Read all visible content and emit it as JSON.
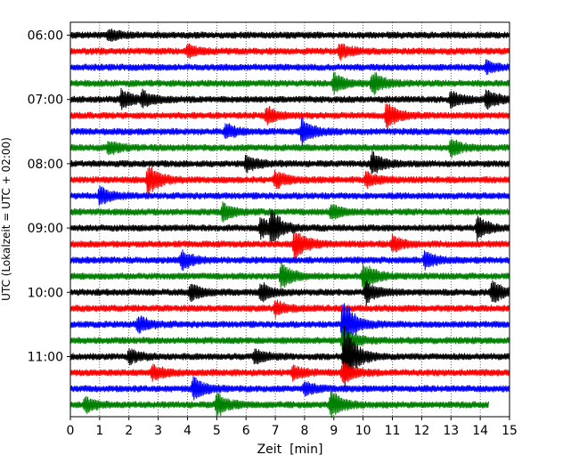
{
  "chart_data": {
    "type": "line",
    "title": "",
    "xlabel": "Zeit  [min]",
    "ylabel": "UTC (Lokalzeit = UTC + 02:00)",
    "xlim": [
      0,
      15
    ],
    "x_ticks": [
      "0",
      "1",
      "2",
      "3",
      "4",
      "5",
      "6",
      "7",
      "8",
      "9",
      "10",
      "11",
      "12",
      "13",
      "14",
      "15"
    ],
    "y_tick_labels": [
      "06:00",
      "07:00",
      "08:00",
      "09:00",
      "10:00",
      "11:00"
    ],
    "grid": "vertical dotted at each minute",
    "trace_colors": [
      "#000000",
      "#ff0000",
      "#0000ff",
      "#008000"
    ],
    "rows": [
      {
        "start": "06:00",
        "color": "#000000",
        "end_min": 15
      },
      {
        "start": "06:15",
        "color": "#ff0000",
        "end_min": 15
      },
      {
        "start": "06:30",
        "color": "#0000ff",
        "end_min": 15
      },
      {
        "start": "06:45",
        "color": "#008000",
        "end_min": 15
      },
      {
        "start": "07:00",
        "color": "#000000",
        "end_min": 15
      },
      {
        "start": "07:15",
        "color": "#ff0000",
        "end_min": 15
      },
      {
        "start": "07:30",
        "color": "#0000ff",
        "end_min": 15
      },
      {
        "start": "07:45",
        "color": "#008000",
        "end_min": 15
      },
      {
        "start": "08:00",
        "color": "#000000",
        "end_min": 15
      },
      {
        "start": "08:15",
        "color": "#ff0000",
        "end_min": 15
      },
      {
        "start": "08:30",
        "color": "#0000ff",
        "end_min": 15
      },
      {
        "start": "08:45",
        "color": "#008000",
        "end_min": 15
      },
      {
        "start": "09:00",
        "color": "#000000",
        "end_min": 15
      },
      {
        "start": "09:15",
        "color": "#ff0000",
        "end_min": 15
      },
      {
        "start": "09:30",
        "color": "#0000ff",
        "end_min": 15
      },
      {
        "start": "09:45",
        "color": "#008000",
        "end_min": 15
      },
      {
        "start": "10:00",
        "color": "#000000",
        "end_min": 15
      },
      {
        "start": "10:15",
        "color": "#ff0000",
        "end_min": 15
      },
      {
        "start": "10:30",
        "color": "#0000ff",
        "end_min": 15
      },
      {
        "start": "10:45",
        "color": "#008000",
        "end_min": 15
      },
      {
        "start": "11:00",
        "color": "#000000",
        "end_min": 15
      },
      {
        "start": "11:15",
        "color": "#ff0000",
        "end_min": 15
      },
      {
        "start": "11:30",
        "color": "#0000ff",
        "end_min": 15
      },
      {
        "start": "11:45",
        "color": "#008000",
        "end_min": 14.3
      }
    ],
    "events": [
      {
        "row": 0,
        "min": 1.3,
        "amp": 0.4
      },
      {
        "row": 1,
        "min": 9.2,
        "amp": 0.5
      },
      {
        "row": 1,
        "min": 4.0,
        "amp": 0.4
      },
      {
        "row": 2,
        "min": 14.2,
        "amp": 0.4
      },
      {
        "row": 3,
        "min": 9.0,
        "amp": 0.7
      },
      {
        "row": 3,
        "min": 10.3,
        "amp": 0.8
      },
      {
        "row": 4,
        "min": 1.75,
        "amp": 0.7
      },
      {
        "row": 4,
        "min": 2.45,
        "amp": 0.5
      },
      {
        "row": 4,
        "min": 13.0,
        "amp": 0.6
      },
      {
        "row": 4,
        "min": 14.2,
        "amp": 0.7
      },
      {
        "row": 5,
        "min": 6.7,
        "amp": 0.6
      },
      {
        "row": 5,
        "min": 10.8,
        "amp": 1.0
      },
      {
        "row": 6,
        "min": 7.9,
        "amp": 0.9
      },
      {
        "row": 6,
        "min": 5.3,
        "amp": 0.5
      },
      {
        "row": 7,
        "min": 13.0,
        "amp": 0.6
      },
      {
        "row": 7,
        "min": 1.3,
        "amp": 0.5
      },
      {
        "row": 8,
        "min": 6.0,
        "amp": 0.6
      },
      {
        "row": 8,
        "min": 10.3,
        "amp": 0.8
      },
      {
        "row": 9,
        "min": 2.65,
        "amp": 1.1
      },
      {
        "row": 9,
        "min": 7.0,
        "amp": 0.6
      },
      {
        "row": 9,
        "min": 10.1,
        "amp": 0.5
      },
      {
        "row": 10,
        "min": 1.0,
        "amp": 0.6
      },
      {
        "row": 11,
        "min": 5.2,
        "amp": 0.6
      },
      {
        "row": 11,
        "min": 8.9,
        "amp": 0.5
      },
      {
        "row": 12,
        "min": 6.5,
        "amp": 0.7
      },
      {
        "row": 12,
        "min": 6.85,
        "amp": 1.1
      },
      {
        "row": 12,
        "min": 13.9,
        "amp": 0.8
      },
      {
        "row": 13,
        "min": 7.65,
        "amp": 1.1
      },
      {
        "row": 13,
        "min": 11.0,
        "amp": 0.5
      },
      {
        "row": 14,
        "min": 3.8,
        "amp": 0.7
      },
      {
        "row": 14,
        "min": 12.1,
        "amp": 0.6
      },
      {
        "row": 15,
        "min": 7.2,
        "amp": 0.9
      },
      {
        "row": 15,
        "min": 10.0,
        "amp": 1.0
      },
      {
        "row": 16,
        "min": 4.1,
        "amp": 0.6
      },
      {
        "row": 16,
        "min": 6.5,
        "amp": 0.7
      },
      {
        "row": 16,
        "min": 10.1,
        "amp": 0.7
      },
      {
        "row": 16,
        "min": 14.4,
        "amp": 0.8
      },
      {
        "row": 17,
        "min": 7.0,
        "amp": 0.5
      },
      {
        "row": 18,
        "min": 2.3,
        "amp": 0.6
      },
      {
        "row": 18,
        "min": 9.3,
        "amp": 2.0
      },
      {
        "row": 19,
        "min": 9.3,
        "amp": 1.0
      },
      {
        "row": 20,
        "min": 9.35,
        "amp": 2.4
      },
      {
        "row": 20,
        "min": 2.0,
        "amp": 0.5
      },
      {
        "row": 20,
        "min": 6.3,
        "amp": 0.5
      },
      {
        "row": 21,
        "min": 2.8,
        "amp": 0.5
      },
      {
        "row": 21,
        "min": 9.3,
        "amp": 0.8
      },
      {
        "row": 21,
        "min": 7.6,
        "amp": 0.5
      },
      {
        "row": 22,
        "min": 4.2,
        "amp": 0.8
      },
      {
        "row": 22,
        "min": 8.0,
        "amp": 0.5
      },
      {
        "row": 23,
        "min": 5.0,
        "amp": 0.8
      },
      {
        "row": 23,
        "min": 8.9,
        "amp": 1.0
      },
      {
        "row": 23,
        "min": 0.5,
        "amp": 0.5
      }
    ]
  }
}
